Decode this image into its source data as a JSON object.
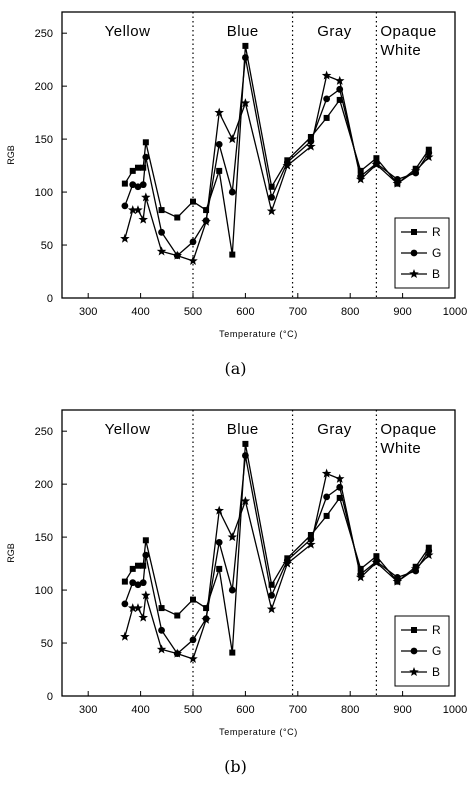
{
  "panels": [
    {
      "caption": "(a)",
      "chart_data": {
        "type": "line",
        "xlabel": "Temperature (°C)",
        "ylabel": "RGB",
        "xlim": [
          250,
          1000
        ],
        "ylim": [
          0,
          270
        ],
        "xticks": [
          300,
          400,
          500,
          600,
          700,
          800,
          900,
          1000
        ],
        "yticks": [
          0,
          50,
          100,
          150,
          200,
          250
        ],
        "grid": false,
        "legend_position": "bottom-right",
        "regions": [
          {
            "label": "Yellow",
            "x_from": 250,
            "x_to": 500
          },
          {
            "label": "Blue",
            "x_from": 500,
            "x_to": 690
          },
          {
            "label": "Gray",
            "x_from": 690,
            "x_to": 850
          },
          {
            "label": "Opaque White",
            "x_from": 850,
            "x_to": 1000
          }
        ],
        "region_boundaries": [
          500,
          690,
          850
        ],
        "x": [
          370,
          385,
          395,
          405,
          410,
          440,
          470,
          500,
          525,
          550,
          575,
          600,
          650,
          680,
          725,
          755,
          780,
          820,
          850,
          890,
          925,
          950
        ],
        "series": [
          {
            "name": "R",
            "marker": "square",
            "values": [
              108,
              120,
              123,
              123,
              147,
              83,
              76,
              91,
              83,
              120,
              41,
              238,
              105,
              130,
              152,
              170,
              187,
              120,
              132,
              108,
              122,
              140
            ]
          },
          {
            "name": "G",
            "marker": "circle",
            "values": [
              87,
              107,
              105,
              107,
              133,
              62,
              40,
              53,
              73,
              145,
              100,
              227,
              95,
              128,
              148,
              188,
              197,
              115,
              127,
              112,
              118,
              137
            ]
          },
          {
            "name": "B",
            "marker": "star",
            "values": [
              56,
              83,
              83,
              74,
              95,
              44,
              40,
              35,
              72,
              175,
              150,
              184,
              82,
              125,
              143,
              210,
              205,
              112,
              126,
              108,
              120,
              133
            ]
          }
        ]
      }
    },
    {
      "caption": "(b)",
      "chart_data": {
        "type": "line",
        "xlabel": "Temperature (°C)",
        "ylabel": "RGB",
        "xlim": [
          250,
          1000
        ],
        "ylim": [
          0,
          270
        ],
        "xticks": [
          300,
          400,
          500,
          600,
          700,
          800,
          900,
          1000
        ],
        "yticks": [
          0,
          50,
          100,
          150,
          200,
          250
        ],
        "grid": false,
        "legend_position": "bottom-right",
        "regions": [
          {
            "label": "Yellow",
            "x_from": 250,
            "x_to": 500
          },
          {
            "label": "Blue",
            "x_from": 500,
            "x_to": 690
          },
          {
            "label": "Gray",
            "x_from": 690,
            "x_to": 850
          },
          {
            "label": "Opaque White",
            "x_from": 850,
            "x_to": 1000
          }
        ],
        "region_boundaries": [
          500,
          690,
          850
        ],
        "x": [
          370,
          385,
          395,
          405,
          410,
          440,
          470,
          500,
          525,
          550,
          575,
          600,
          650,
          680,
          725,
          755,
          780,
          820,
          850,
          890,
          925,
          950
        ],
        "series": [
          {
            "name": "R",
            "marker": "square",
            "values": [
              108,
              120,
              123,
              123,
              147,
              83,
              76,
              91,
              83,
              120,
              41,
              238,
              105,
              130,
              152,
              170,
              187,
              120,
              132,
              108,
              122,
              140
            ]
          },
          {
            "name": "G",
            "marker": "circle",
            "values": [
              87,
              107,
              105,
              107,
              133,
              62,
              40,
              53,
              73,
              145,
              100,
              227,
              95,
              128,
              148,
              188,
              197,
              115,
              127,
              112,
              118,
              137
            ]
          },
          {
            "name": "B",
            "marker": "star",
            "values": [
              56,
              83,
              83,
              74,
              95,
              44,
              40,
              35,
              72,
              175,
              150,
              184,
              82,
              125,
              143,
              210,
              205,
              112,
              126,
              108,
              120,
              133
            ]
          }
        ]
      }
    }
  ]
}
